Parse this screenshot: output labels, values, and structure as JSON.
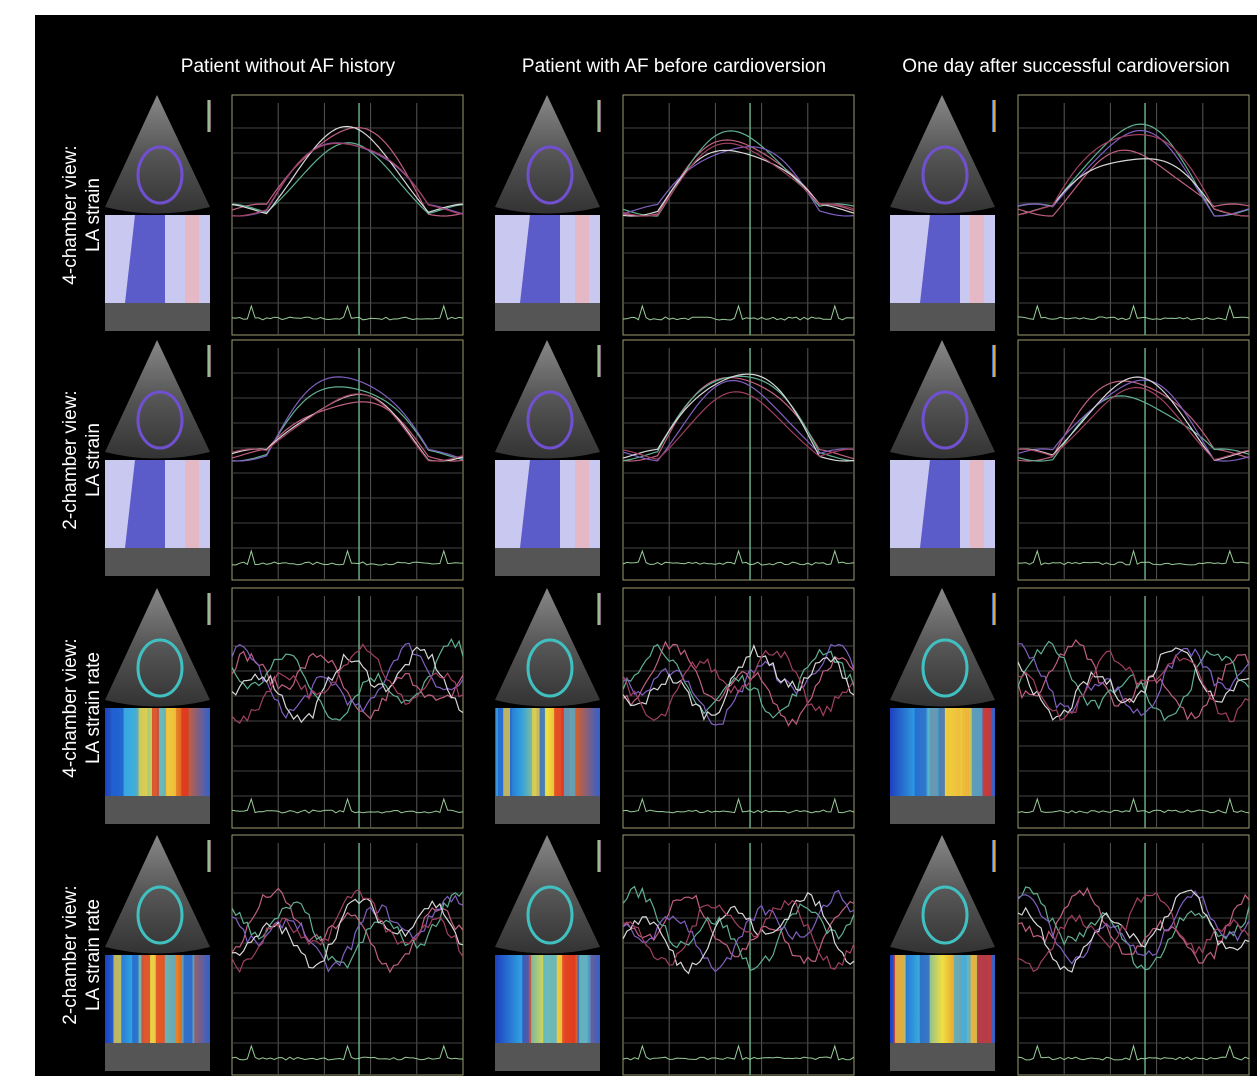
{
  "columns": [
    "Patient without AF history",
    "Patient with AF before cardioversion",
    "One day after successful cardioversion"
  ],
  "rows": [
    {
      "line1": "4-chamber view:",
      "line2": "LA strain"
    },
    {
      "line1": "2-chamber view:",
      "line2": "LA strain"
    },
    {
      "line1": "4-chamber view:",
      "line2": "LA strain rate"
    },
    {
      "line1": "2-chamber view:",
      "line2": "LA strain rate"
    }
  ]
}
